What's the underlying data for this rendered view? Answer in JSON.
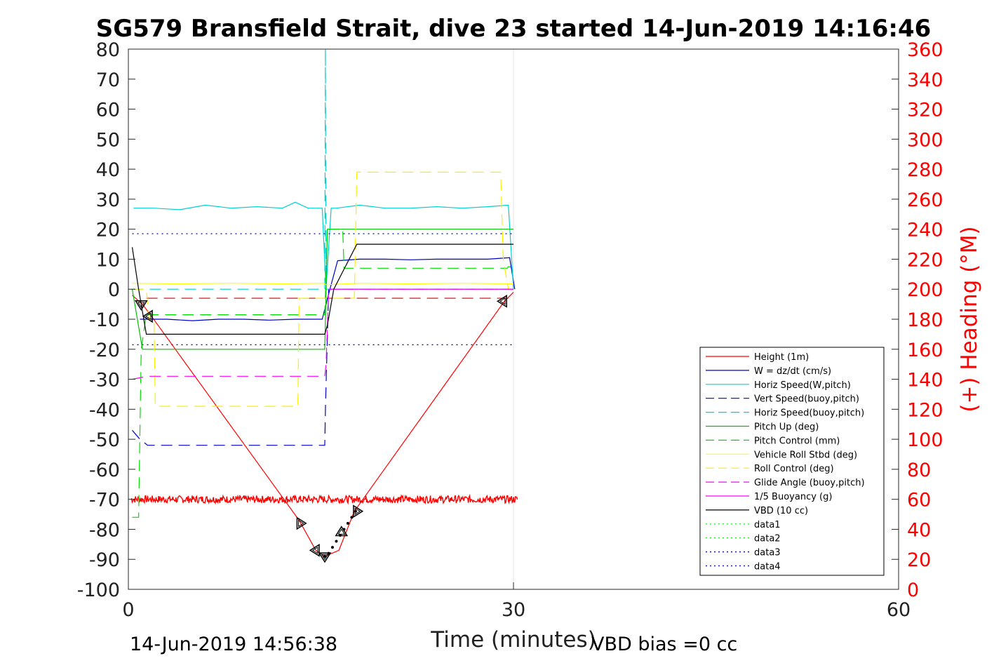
{
  "chart_data": {
    "type": "line",
    "title": "SG579 Bransfield Strait, dive 23 started 14-Jun-2019 14:16:46",
    "xlabel": "Time (minutes)",
    "ylabel": "",
    "y2label": "(+) Heading (°M)",
    "xlim": [
      0,
      60
    ],
    "ylim": [
      -100,
      80
    ],
    "y2lim": [
      0,
      360
    ],
    "xticks": [
      "0",
      "30",
      "60"
    ],
    "yticks": [
      "80",
      "70",
      "60",
      "50",
      "40",
      "30",
      "20",
      "10",
      "0",
      "-10",
      "-20",
      "-30",
      "-40",
      "-50",
      "-60",
      "-70",
      "-80",
      "-90",
      "-100"
    ],
    "y2ticks": [
      "360",
      "340",
      "320",
      "300",
      "280",
      "260",
      "240",
      "220",
      "200",
      "180",
      "160",
      "140",
      "120",
      "100",
      "80",
      "60",
      "40",
      "20",
      "0"
    ],
    "grid": "x-only",
    "legend_position": "lower-right",
    "footer_left": "14-Jun-2019 14:56:38",
    "footer_right": "VBD bias =0 cc",
    "series": [
      {
        "name": "Height (1m)",
        "color": "#ff0000",
        "style": "solid",
        "x": [
          0.3,
          1.1,
          1.8,
          13.3,
          14.6,
          15.3,
          16.4,
          17.6,
          29.3,
          30.0
        ],
        "y": [
          -2,
          -5,
          -9,
          -77,
          -87,
          -89,
          -87,
          -74,
          -4,
          -1
        ]
      },
      {
        "name": "W = dz/dt (cm/s)",
        "color": "#0000cc",
        "style": "solid",
        "x": [
          0.9,
          3,
          5,
          7,
          9,
          11,
          13,
          15.1,
          15.4,
          15.7,
          16.3,
          18,
          20,
          22,
          24,
          26,
          28,
          29.7,
          30.1
        ],
        "y": [
          -10,
          -10,
          -10.5,
          -10,
          -10,
          -10.3,
          -10,
          -10,
          -5,
          0,
          9.5,
          10,
          10,
          9.8,
          10,
          10,
          10,
          10.5,
          0
        ]
      },
      {
        "name": "Horiz Speed(W,pitch)",
        "color": "#00d0d0",
        "style": "solid",
        "x": [
          0.4,
          2,
          4,
          6,
          8,
          10,
          12,
          13,
          14,
          15.1,
          15.4,
          15.8,
          16.2,
          18,
          20,
          22,
          24,
          26,
          28,
          29.6,
          30.0
        ],
        "y": [
          27,
          27,
          26.5,
          28,
          27,
          27.5,
          27,
          29,
          27,
          27,
          0,
          27,
          27,
          28,
          27,
          27,
          27.5,
          27,
          27.5,
          28,
          0
        ]
      },
      {
        "name": "Vert Speed(buoy,pitch)",
        "color": "#0000cc",
        "style": "dashed",
        "x": [
          0.3,
          0.9,
          1.5,
          15.3,
          15.35,
          15.6,
          30.0
        ],
        "y": [
          -47,
          -50,
          -52,
          -52,
          -40,
          0,
          0
        ]
      },
      {
        "name": "Horiz Speed(buoy,pitch)",
        "color": "#00d0d0",
        "style": "dashed",
        "x": [
          0.3,
          15.2,
          15.3,
          15.35,
          15.4,
          15.5,
          30.0
        ],
        "y": [
          0,
          0,
          0,
          80,
          0,
          0,
          0
        ]
      },
      {
        "name": "Pitch Up (deg)",
        "color": "#00c000",
        "style": "solid",
        "x": [
          0.3,
          1.1,
          15.1,
          15.3,
          15.5,
          30.0
        ],
        "y": [
          0,
          -20,
          -20,
          -20,
          20,
          20
        ]
      },
      {
        "name": "Pitch Control (mm)",
        "color": "#00dd00",
        "style": "dashed",
        "x": [
          0.3,
          0.8,
          1.0,
          1.4,
          15.2,
          15.3,
          15.5,
          16.7,
          16.8,
          29.5,
          29.6,
          30.0
        ],
        "y": [
          -76,
          -76,
          -20,
          -8.5,
          -8.5,
          -8.5,
          20,
          20,
          7,
          7,
          7.5,
          7.5
        ]
      },
      {
        "name": "Vehicle Roll Stbd (deg)",
        "color": "#ffff00",
        "style": "solid",
        "x": [
          0.3,
          4,
          8,
          12,
          15.2,
          15.4,
          18,
          22,
          26,
          30.0
        ],
        "y": [
          2,
          1.8,
          2,
          1.8,
          2,
          1.5,
          2,
          1.8,
          2,
          1.8
        ]
      },
      {
        "name": "Roll Control (deg)",
        "color": "#ffee00",
        "style": "dashed",
        "x": [
          0.3,
          1.4,
          1.6,
          2.0,
          2.1,
          13.2,
          13.3,
          14.6,
          14.7,
          17.6,
          17.8,
          29.0,
          29.2,
          29.6,
          30.0
        ],
        "y": [
          0,
          0,
          -10,
          -10,
          -39,
          -39,
          -3,
          -3,
          -3,
          -3,
          39,
          39,
          10,
          0,
          0
        ]
      },
      {
        "name": "Glide Angle (buoy,pitch)",
        "color": "#ff00ff",
        "style": "dashed",
        "x": [
          0.3,
          1.5,
          15.3,
          15.4,
          15.6,
          30.0
        ],
        "y": [
          -30,
          -29,
          -29,
          -25,
          0,
          0
        ]
      },
      {
        "name": "1/5 Buoyancy (g)",
        "color": "#ff00ff",
        "style": "solid",
        "x": [
          15.6,
          30.0
        ],
        "y": [
          0,
          0
        ]
      },
      {
        "name": "VBD (10 cc)",
        "color": "#000000",
        "style": "solid",
        "x": [
          0.3,
          0.8,
          1.4,
          15.1,
          15.3,
          15.5,
          16.0,
          17.8,
          18.1,
          30.0
        ],
        "y": [
          14,
          0,
          -15,
          -15,
          -15,
          -12,
          0,
          15,
          15,
          15
        ]
      },
      {
        "name": "data1",
        "color": "#00ee00",
        "style": "dotted",
        "x": [],
        "y": []
      },
      {
        "name": "data2",
        "color": "#00ee00",
        "style": "dotted",
        "x": [],
        "y": []
      },
      {
        "name": "data3",
        "color": "#000088",
        "style": "dotted",
        "x": [
          0.3,
          30.0
        ],
        "y": [
          -18.5,
          -18.5
        ]
      },
      {
        "name": "data4",
        "color": "#0000cc",
        "style": "dotted",
        "x": [
          0.3,
          30.0
        ],
        "y": [
          18.5,
          18.5
        ]
      }
    ],
    "extra_lines": [
      {
        "color": "#cc0000",
        "style": "dashed",
        "x": [
          1.4,
          30.0
        ],
        "y": [
          -3,
          -3
        ]
      }
    ],
    "heading_series": {
      "color": "#ff0000",
      "axis": "right",
      "x": [
        0.2,
        30.3
      ],
      "y_mean": 60,
      "noise": 2.5
    },
    "markers": [
      {
        "x": 1.0,
        "y": -5,
        "dir": "down"
      },
      {
        "x": 1.6,
        "y": -9,
        "dir": "left"
      },
      {
        "x": 13.4,
        "y": -78,
        "dir": "right"
      },
      {
        "x": 14.6,
        "y": -87,
        "dir": "left"
      },
      {
        "x": 15.3,
        "y": -89,
        "dir": "down"
      },
      {
        "x": 16.6,
        "y": -81,
        "dir": "up"
      },
      {
        "x": 17.8,
        "y": -74,
        "dir": "right"
      },
      {
        "x": 29.2,
        "y": -4,
        "dir": "left"
      }
    ],
    "ascent_dots": {
      "x": [
        15.3,
        15.6,
        15.9,
        16.2,
        16.5,
        16.8,
        17.1,
        17.4,
        17.7
      ],
      "y": [
        -89,
        -88,
        -86,
        -84,
        -82,
        -80,
        -78,
        -76,
        -74
      ]
    }
  }
}
